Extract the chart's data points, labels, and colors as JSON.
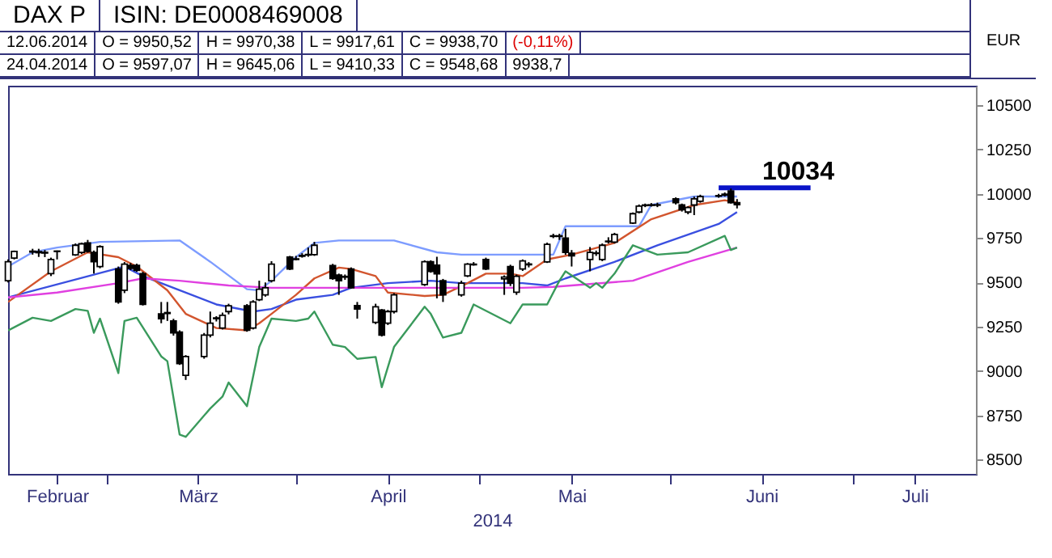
{
  "chart_data": {
    "type": "candlestick",
    "title": "DAX P",
    "subtitle": "ISIN: DE0008469008",
    "ylabel": "EUR",
    "xlabel": "2014",
    "annotations": [
      "12.06.2014",
      "O = 9950,52",
      "H = 9970,38",
      "L = 9917,61",
      "C = 9938,70",
      "(-0,11%)",
      "24.04.2014",
      "O = 9597,07",
      "H = 9645,06",
      "L = 9410,33",
      "C = 9548,68",
      {
        "text": "10034",
        "x": "2014-06-22",
        "y": 10034
      },
      "9938,7"
    ],
    "x": [
      "2014-02-13",
      "2014-02-14",
      "2014-02-17",
      "2014-02-18",
      "2014-02-19",
      "2014-02-20",
      "2014-02-21",
      "2014-02-24",
      "2014-02-25",
      "2014-02-26",
      "2014-02-27",
      "2014-02-28",
      "2014-03-03",
      "2014-03-04",
      "2014-03-05",
      "2014-03-06",
      "2014-03-07",
      "2014-03-10",
      "2014-03-11",
      "2014-03-12",
      "2014-03-13",
      "2014-03-14",
      "2014-03-17",
      "2014-03-18",
      "2014-03-19",
      "2014-03-20",
      "2014-03-21",
      "2014-03-24",
      "2014-03-25",
      "2014-03-26",
      "2014-03-27",
      "2014-03-28",
      "2014-03-31",
      "2014-04-01",
      "2014-04-02",
      "2014-04-03",
      "2014-04-04",
      "2014-04-07",
      "2014-04-08",
      "2014-04-09",
      "2014-04-10",
      "2014-04-11",
      "2014-04-14",
      "2014-04-15",
      "2014-04-16",
      "2014-04-17",
      "2014-04-22",
      "2014-04-23",
      "2014-04-24",
      "2014-04-25",
      "2014-04-28",
      "2014-04-29",
      "2014-04-30",
      "2014-05-02",
      "2014-05-05",
      "2014-05-06",
      "2014-05-07",
      "2014-05-08",
      "2014-05-09",
      "2014-05-12",
      "2014-05-13",
      "2014-05-14",
      "2014-05-15",
      "2014-05-16",
      "2014-05-19",
      "2014-05-20",
      "2014-05-21",
      "2014-05-22",
      "2014-05-23",
      "2014-05-26",
      "2014-05-27",
      "2014-05-28",
      "2014-05-29",
      "2014-05-30",
      "2014-06-02",
      "2014-06-03",
      "2014-06-04",
      "2014-06-05",
      "2014-06-06",
      "2014-06-09",
      "2014-06-10",
      "2014-06-11",
      "2014-06-12"
    ],
    "ohlc": [
      [
        9510,
        9630,
        9500,
        9617
      ],
      [
        9638,
        9680,
        9630,
        9675
      ],
      [
        9672,
        9690,
        9657,
        9676
      ],
      [
        9668,
        9690,
        9644,
        9674
      ],
      [
        9670,
        9683,
        9643,
        9666
      ],
      [
        9550,
        9640,
        9536,
        9630
      ],
      [
        9675,
        9680,
        9630,
        9677
      ],
      [
        9656,
        9720,
        9650,
        9710
      ],
      [
        9670,
        9725,
        9660,
        9718
      ],
      [
        9723,
        9740,
        9668,
        9675
      ],
      [
        9670,
        9680,
        9550,
        9617
      ],
      [
        9590,
        9710,
        9580,
        9702
      ],
      [
        9576,
        9590,
        9380,
        9390
      ],
      [
        9456,
        9615,
        9440,
        9603
      ],
      [
        9596,
        9610,
        9570,
        9580
      ],
      [
        9596,
        9606,
        9560,
        9568
      ],
      [
        9550,
        9560,
        9370,
        9376
      ],
      [
        9323,
        9390,
        9270,
        9296
      ],
      [
        9330,
        9390,
        9283,
        9325
      ],
      [
        9283,
        9295,
        9200,
        9216
      ],
      [
        9220,
        9230,
        9035,
        9042
      ],
      [
        8976,
        9090,
        8950,
        9082
      ],
      [
        9082,
        9215,
        9070,
        9203
      ],
      [
        9203,
        9336,
        9190,
        9270
      ],
      [
        9300,
        9310,
        9280,
        9296
      ],
      [
        9243,
        9330,
        9235,
        9315
      ],
      [
        9336,
        9380,
        9320,
        9368
      ],
      [
        9368,
        9378,
        9222,
        9230
      ],
      [
        9243,
        9400,
        9235,
        9390
      ],
      [
        9403,
        9510,
        9395,
        9462
      ],
      [
        9430,
        9500,
        9420,
        9470
      ],
      [
        9510,
        9620,
        9500,
        9603
      ],
      [
        9643,
        9650,
        9570,
        9576
      ],
      [
        9630,
        9650,
        9625,
        9633
      ],
      [
        9648,
        9665,
        9640,
        9652
      ],
      [
        9655,
        9697,
        9645,
        9658
      ],
      [
        9657,
        9729,
        9650,
        9710
      ],
      [
        9595,
        9605,
        9515,
        9523
      ],
      [
        9542,
        9550,
        9430,
        9510
      ],
      [
        9530,
        9545,
        9515,
        9534
      ],
      [
        9576,
        9585,
        9465,
        9470
      ],
      [
        9370,
        9390,
        9296,
        9350
      ],
      [
        9275,
        9380,
        9265,
        9363
      ],
      [
        9344,
        9350,
        9195,
        9203
      ],
      [
        9270,
        9345,
        9260,
        9336
      ],
      [
        9336,
        9440,
        9325,
        9430
      ],
      [
        9488,
        9625,
        9480,
        9617
      ],
      [
        9617,
        9625,
        9555,
        9563
      ],
      [
        9597.07,
        9645.06,
        9410.33,
        9548.68
      ],
      [
        9510,
        9520,
        9390,
        9430
      ],
      [
        9430,
        9510,
        9420,
        9496
      ],
      [
        9537,
        9610,
        9530,
        9603
      ],
      [
        9600,
        9615,
        9595,
        9603
      ],
      [
        9630,
        9640,
        9570,
        9576
      ],
      [
        9520,
        9540,
        9430,
        9530
      ],
      [
        9590,
        9600,
        9480,
        9496
      ],
      [
        9445,
        9545,
        9430,
        9535
      ],
      [
        9576,
        9630,
        9565,
        9622
      ],
      [
        9600,
        9615,
        9585,
        9604
      ],
      [
        9616,
        9725,
        9610,
        9715
      ],
      [
        9760,
        9775,
        9750,
        9763
      ],
      [
        9763,
        9775,
        9740,
        9760
      ],
      [
        9750,
        9803,
        9656,
        9670
      ],
      [
        9665,
        9683,
        9590,
        9650
      ],
      [
        9630,
        9700,
        9563,
        9670
      ],
      [
        9664,
        9680,
        9650,
        9666
      ],
      [
        9630,
        9720,
        9620,
        9710
      ],
      [
        9730,
        9755,
        9720,
        9733
      ],
      [
        9728,
        9780,
        9720,
        9771
      ],
      [
        9835,
        9895,
        9830,
        9888
      ],
      [
        9897,
        9940,
        9890,
        9931
      ],
      [
        9934,
        9945,
        9925,
        9937
      ],
      [
        9935,
        9948,
        9928,
        9938
      ],
      [
        9938,
        9950,
        9925,
        9936
      ],
      [
        9972,
        9980,
        9940,
        9950
      ],
      [
        9937,
        9945,
        9900,
        9910
      ],
      [
        9897,
        9930,
        9885,
        9923
      ],
      [
        9937,
        9985,
        9880,
        9972
      ],
      [
        9958,
        9995,
        9950,
        9985
      ],
      [
        9987,
        10000,
        9978,
        9990
      ],
      [
        9993,
        10008,
        9985,
        9998
      ],
      [
        10016,
        10030,
        9945,
        9950
      ],
      [
        9950.52,
        9970.38,
        9917.61,
        9938.7
      ]
    ],
    "series": [
      {
        "type": "line",
        "color": "#7d9cff",
        "x": [
          "2014-02-13",
          "2014-02-17",
          "2014-02-21",
          "2014-02-28",
          "2014-03-13",
          "2014-03-18",
          "2014-03-24",
          "2014-03-26",
          "2014-03-28",
          "2014-04-01",
          "2014-04-04",
          "2014-04-08",
          "2014-04-17",
          "2014-04-24",
          "2014-04-28",
          "2014-05-08",
          "2014-05-13",
          "2014-05-15",
          "2014-05-27",
          "2014-05-29",
          "2014-06-05",
          "2014-06-12"
        ],
        "values": [
          9590,
          9670,
          9697,
          9729,
          9737,
          9617,
          9462,
          9456,
          9510,
          9643,
          9723,
          9737,
          9737,
          9670,
          9657,
          9657,
          9657,
          9817,
          9817,
          9937,
          9985,
          9985
        ]
      },
      {
        "type": "line",
        "color": "#3a4fe0",
        "x": [
          "2014-02-13",
          "2014-03-04",
          "2014-03-07",
          "2014-03-13",
          "2014-03-19",
          "2014-03-25",
          "2014-03-28",
          "2014-04-01",
          "2014-04-07",
          "2014-04-10",
          "2014-04-16",
          "2014-04-23",
          "2014-04-28",
          "2014-05-02",
          "2014-05-08",
          "2014-05-12",
          "2014-05-15",
          "2014-05-23",
          "2014-05-30",
          "2014-06-09",
          "2014-06-12"
        ],
        "values": [
          9416,
          9590,
          9536,
          9456,
          9376,
          9336,
          9350,
          9403,
          9430,
          9470,
          9496,
          9510,
          9496,
          9496,
          9496,
          9483,
          9523,
          9616,
          9710,
          9830,
          9897
        ]
      },
      {
        "type": "line",
        "color": "#d2552e",
        "x": [
          "2014-02-13",
          "2014-02-20",
          "2014-02-26",
          "2014-03-03",
          "2014-03-06",
          "2014-03-11",
          "2014-03-14",
          "2014-03-19",
          "2014-03-24",
          "2014-03-26",
          "2014-03-28",
          "2014-04-01",
          "2014-04-04",
          "2014-04-08",
          "2014-04-10",
          "2014-04-14",
          "2014-04-16",
          "2014-04-22",
          "2014-04-25",
          "2014-04-29",
          "2014-05-02",
          "2014-05-06",
          "2014-05-08",
          "2014-05-12",
          "2014-05-16",
          "2014-05-23",
          "2014-05-29",
          "2014-06-05",
          "2014-06-10",
          "2014-06-12"
        ],
        "values": [
          9390,
          9563,
          9670,
          9643,
          9590,
          9456,
          9323,
          9243,
          9230,
          9270,
          9323,
          9430,
          9523,
          9584,
          9576,
          9536,
          9443,
          9424,
          9430,
          9496,
          9550,
          9550,
          9536,
          9630,
          9657,
          9723,
          9857,
          9937,
          9964,
          9950
        ]
      },
      {
        "type": "line",
        "color": "#e040e0",
        "x": [
          "2014-02-13",
          "2014-02-21",
          "2014-03-03",
          "2014-03-07",
          "2014-03-13",
          "2014-03-21",
          "2014-03-28",
          "2014-04-17",
          "2014-05-08",
          "2014-05-13",
          "2014-05-26",
          "2014-06-04",
          "2014-06-12"
        ],
        "values": [
          9416,
          9443,
          9496,
          9523,
          9510,
          9483,
          9470,
          9470,
          9470,
          9475,
          9510,
          9616,
          9697
        ]
      },
      {
        "type": "line",
        "color": "#3a9a5c",
        "x": [
          "2014-02-13",
          "2014-02-17",
          "2014-02-20",
          "2014-02-24",
          "2014-02-26",
          "2014-02-27",
          "2014-02-28",
          "2014-03-03",
          "2014-03-04",
          "2014-03-06",
          "2014-03-10",
          "2014-03-11",
          "2014-03-13",
          "2014-03-14",
          "2014-03-18",
          "2014-03-20",
          "2014-03-21",
          "2014-03-24",
          "2014-03-26",
          "2014-03-28",
          "2014-04-01",
          "2014-04-03",
          "2014-04-04",
          "2014-04-07",
          "2014-04-09",
          "2014-04-11",
          "2014-04-14",
          "2014-04-15",
          "2014-04-17",
          "2014-04-22",
          "2014-04-23",
          "2014-04-25",
          "2014-04-28",
          "2014-04-30",
          "2014-05-06",
          "2014-05-08",
          "2014-05-12",
          "2014-05-14",
          "2014-05-15",
          "2014-05-19",
          "2014-05-20",
          "2014-05-21",
          "2014-05-23",
          "2014-05-26",
          "2014-05-30",
          "2014-06-04",
          "2014-06-10",
          "2014-06-11",
          "2014-06-12"
        ],
        "values": [
          9229,
          9301,
          9283,
          9350,
          9340,
          9216,
          9296,
          8989,
          9283,
          9301,
          9083,
          9056,
          8642,
          8629,
          8789,
          8856,
          8936,
          8802,
          9136,
          9296,
          9283,
          9296,
          9336,
          9149,
          9136,
          9069,
          9080,
          8909,
          9136,
          9363,
          9323,
          9189,
          9216,
          9376,
          9270,
          9376,
          9376,
          9510,
          9563,
          9470,
          9496,
          9470,
          9550,
          9710,
          9657,
          9670,
          9763,
          9683,
          9697
        ]
      },
      {
        "type": "line",
        "color": "#0a14c8",
        "x": [
          "2014-06-09",
          "2014-06-24"
        ],
        "values": [
          10034,
          10034
        ]
      }
    ],
    "xlim": [
      "2014-02-13",
      "2014-07-21"
    ],
    "xticks": [
      {
        "value": "2014-02-21",
        "label": "Februar"
      },
      {
        "value": "2014-03-01",
        "label": null
      },
      {
        "value": "2014-03-16",
        "label": "März"
      },
      {
        "value": "2014-04-01",
        "label": null
      },
      {
        "value": "2014-04-16",
        "label": "April"
      },
      {
        "value": "2014-05-01",
        "label": null
      },
      {
        "value": "2014-05-16",
        "label": "Mai"
      },
      {
        "value": "2014-06-01",
        "label": null
      },
      {
        "value": "2014-06-16",
        "label": "Juni"
      },
      {
        "value": "2014-07-01",
        "label": null
      },
      {
        "value": "2014-07-11",
        "label": "Juli"
      }
    ],
    "ylim": [
      8420,
      10610
    ],
    "yticks": [
      8500,
      8750,
      9000,
      9250,
      9500,
      9750,
      10000,
      10250,
      10500
    ],
    "grid": false,
    "marker": "none",
    "line_style": "solid"
  }
}
